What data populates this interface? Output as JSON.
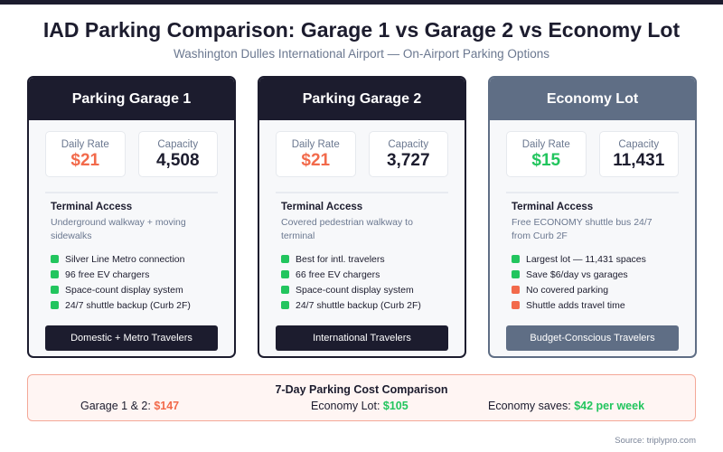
{
  "header": {
    "title": "IAD Parking Comparison: Garage 1 vs Garage 2 vs Economy Lot",
    "subtitle": "Washington Dulles International Airport — On-Airport Parking Options"
  },
  "colors": {
    "dark": "#1c1c2e",
    "slate": "#5f6e85",
    "orange": "#f26a4b",
    "green": "#22c55e"
  },
  "cards": [
    {
      "title": "Parking Garage 1",
      "rate_label": "Daily Rate",
      "rate": "$21",
      "rate_color": "#f26a4b",
      "capacity_label": "Capacity",
      "capacity": "4,508",
      "access_label": "Terminal Access",
      "access_desc": "Underground walkway + moving sidewalks",
      "features": [
        {
          "text": "Silver Line Metro connection",
          "color": "#22c55e"
        },
        {
          "text": "96 free EV chargers",
          "color": "#22c55e"
        },
        {
          "text": "Space-count display system",
          "color": "#22c55e"
        },
        {
          "text": "24/7 shuttle backup (Curb 2F)",
          "color": "#22c55e"
        }
      ],
      "button": "Domestic + Metro Travelers"
    },
    {
      "title": "Parking Garage 2",
      "rate_label": "Daily Rate",
      "rate": "$21",
      "rate_color": "#f26a4b",
      "capacity_label": "Capacity",
      "capacity": "3,727",
      "access_label": "Terminal Access",
      "access_desc": "Covered pedestrian walkway to terminal",
      "features": [
        {
          "text": "Best for intl. travelers",
          "color": "#22c55e"
        },
        {
          "text": "66 free EV chargers",
          "color": "#22c55e"
        },
        {
          "text": "Space-count display system",
          "color": "#22c55e"
        },
        {
          "text": "24/7 shuttle backup (Curb 2F)",
          "color": "#22c55e"
        }
      ],
      "button": "International Travelers"
    },
    {
      "title": "Economy Lot",
      "rate_label": "Daily Rate",
      "rate": "$15",
      "rate_color": "#22c55e",
      "capacity_label": "Capacity",
      "capacity": "11,431",
      "access_label": "Terminal Access",
      "access_desc": "Free ECONOMY shuttle bus 24/7 from Curb 2F",
      "features": [
        {
          "text": "Largest lot — 11,431 spaces",
          "color": "#22c55e"
        },
        {
          "text": "Save $6/day vs garages",
          "color": "#22c55e"
        },
        {
          "text": "No covered parking",
          "color": "#f26a4b"
        },
        {
          "text": "Shuttle adds travel time",
          "color": "#f26a4b"
        }
      ],
      "button": "Budget-Conscious Travelers"
    }
  ],
  "summary": {
    "title": "7-Day Parking Cost Comparison",
    "items": [
      {
        "label": "Garage 1 & 2: ",
        "value": "$147",
        "color": "#f26a4b"
      },
      {
        "label": "Economy Lot: ",
        "value": "$105",
        "color": "#22c55e"
      },
      {
        "label": "Economy saves: ",
        "value": "$42 per week",
        "color": "#22c55e"
      }
    ]
  },
  "source": "Source: triplypro.com"
}
